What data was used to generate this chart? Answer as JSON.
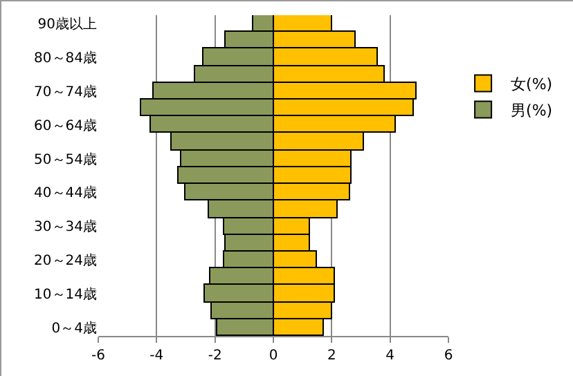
{
  "chart_data": {
    "type": "bar",
    "orientation": "horizontal",
    "categories": [
      "90歳以上",
      null,
      "80～84歳",
      null,
      "70～74歳",
      null,
      "60～64歳",
      null,
      "50～54歳",
      null,
      "40～44歳",
      null,
      "30～34歳",
      null,
      "20～24歳",
      null,
      "10～14歳",
      null,
      "0～4歳"
    ],
    "series": [
      {
        "name": "女(%)",
        "color": "#ffc000",
        "values": [
          2.0,
          2.8,
          3.6,
          3.8,
          4.9,
          4.8,
          4.2,
          3.1,
          2.7,
          2.7,
          2.65,
          2.2,
          1.25,
          1.25,
          1.5,
          2.1,
          2.1,
          2.0,
          1.75
        ]
      },
      {
        "name": "男(%)",
        "color": "#8a9a5b",
        "values": [
          -0.7,
          -1.65,
          -2.4,
          -2.7,
          -4.1,
          -4.55,
          -4.2,
          -3.5,
          -3.15,
          -3.25,
          -3.0,
          -2.2,
          -1.7,
          -1.65,
          -1.7,
          -2.15,
          -2.35,
          -2.1,
          -1.9
        ]
      }
    ],
    "xlim": [
      -6,
      6
    ],
    "xticks": [
      -6,
      -4,
      -2,
      0,
      2,
      4,
      6
    ],
    "grid": "x",
    "legend": "right",
    "stacked": true
  }
}
